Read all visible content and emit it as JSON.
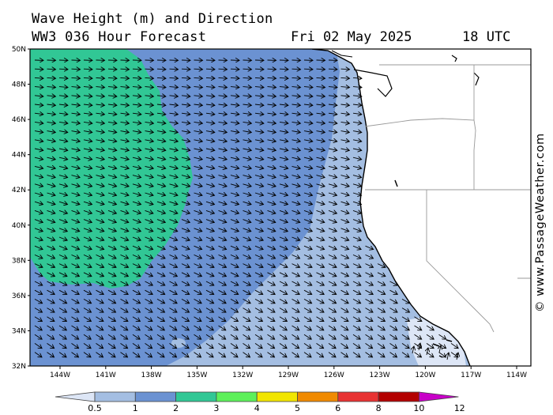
{
  "title": {
    "line1": "Wave Height (m) and Direction",
    "line2": "WW3 036 Hour Forecast",
    "date": "Fri 02 May 2025",
    "time": "18 UTC"
  },
  "credit": "© www.PassageWeather.com",
  "map": {
    "lat_labels": [
      "50N",
      "48N",
      "46N",
      "44N",
      "42N",
      "40N",
      "38N",
      "36N",
      "34N",
      "32N"
    ],
    "lon_labels": [
      "144W",
      "141W",
      "138W",
      "135W",
      "132W",
      "129W",
      "126W",
      "123W",
      "120W",
      "117W",
      "114W"
    ],
    "arrow_direction": "east to south-east swell"
  },
  "colorbar": {
    "labels": [
      "0.5",
      "1",
      "2",
      "3",
      "4",
      "5",
      "6",
      "8",
      "10",
      "12"
    ],
    "colors": [
      "#dde6f6",
      "#a4bee2",
      "#6b92d2",
      "#31c795",
      "#5df05a",
      "#f1e500",
      "#f08a00",
      "#e83232",
      "#b30000",
      "#c800c8"
    ]
  },
  "wave_colors": {
    "band_1_2": "#a4bee2",
    "band_2_3": "#6b92d2",
    "band_3_4": "#31c795",
    "band_05_1": "#dde6f6",
    "land": "#ffffff"
  }
}
